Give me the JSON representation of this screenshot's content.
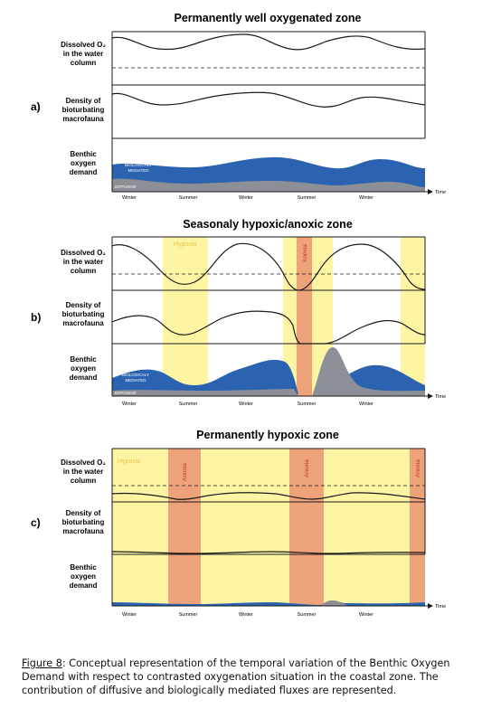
{
  "panels": [
    {
      "letter": "a)",
      "title": "Permanently well oxygenated zone",
      "rows": [
        {
          "label": [
            "Dissolved O₂",
            "in the water",
            "column"
          ]
        },
        {
          "label": [
            "Density of",
            "bioturbating",
            "macrofauna"
          ]
        },
        {
          "label": [
            "Benthic",
            "oxygen",
            "demand"
          ]
        }
      ],
      "inner_labels": [
        "BIOLOGICALY",
        "MEDIATED",
        "DIFFUSIVE"
      ],
      "zone_labels": []
    },
    {
      "letter": "b)",
      "title": "Seasonaly hypoxic/anoxic zone",
      "rows": [
        {
          "label": [
            "Dissolved O₂",
            "in the water",
            "column"
          ]
        },
        {
          "label": [
            "Density of",
            "bioturbating",
            "macrofauna"
          ]
        },
        {
          "label": [
            "Benthic",
            "oxygen",
            "demand"
          ]
        }
      ],
      "inner_labels": [
        "BIOLOGICALY",
        "MEDIATED",
        "DIFFUSIVE"
      ],
      "zone_labels": [
        "Hypoxia",
        "Anoxia"
      ]
    },
    {
      "letter": "c)",
      "title": "Permanently hypoxic zone",
      "rows": [
        {
          "label": [
            "Dissolved O₂",
            "in the water",
            "column"
          ]
        },
        {
          "label": [
            "Density of",
            "bioturbating",
            "macrofauna"
          ]
        },
        {
          "label": [
            "Benthic",
            "oxygen",
            "demand"
          ]
        }
      ],
      "inner_labels": [],
      "zone_labels": [
        "Hypoxia",
        "Anoxia",
        "Anoxia",
        "Anoxia"
      ]
    }
  ],
  "time_axis": {
    "ticks": [
      "Winter",
      "Summer",
      "Winter",
      "Summer",
      "Winter"
    ],
    "label": "Time"
  },
  "caption": {
    "figure_label": "Figure 8",
    "text": ": Conceptual representation of the temporal variation of the Benthic Oxygen Demand with respect to contrasted oxygenation situation in the coastal zone. The contribution of diffusive and biologically mediated fluxes are represented."
  },
  "colors": {
    "hypoxia": "#fdf5a4",
    "anoxia": "#eea27a",
    "biologically_mediated": "#2b63b0",
    "diffusive": "#8d8f96",
    "line": "#1a1a1a",
    "hypoxia_text": "#e8c547",
    "anoxia_text": "#c0392b"
  }
}
